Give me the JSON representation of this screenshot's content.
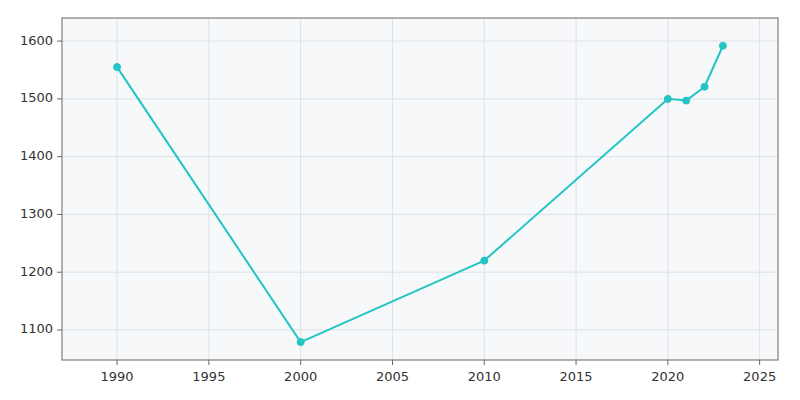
{
  "chart_data": {
    "type": "line",
    "x": [
      1990,
      2000,
      2010,
      2020,
      2021,
      2022,
      2023
    ],
    "values": [
      1555,
      1079,
      1220,
      1500,
      1497,
      1521,
      1592
    ],
    "color": "#22C4C4",
    "marker": "circle",
    "xlim": [
      1987,
      2026
    ],
    "ylim": [
      1048,
      1640
    ],
    "xticks": [
      1990,
      1995,
      2000,
      2005,
      2010,
      2015,
      2020,
      2025
    ],
    "yticks": [
      1100,
      1200,
      1300,
      1400,
      1500,
      1600
    ],
    "grid": true
  }
}
